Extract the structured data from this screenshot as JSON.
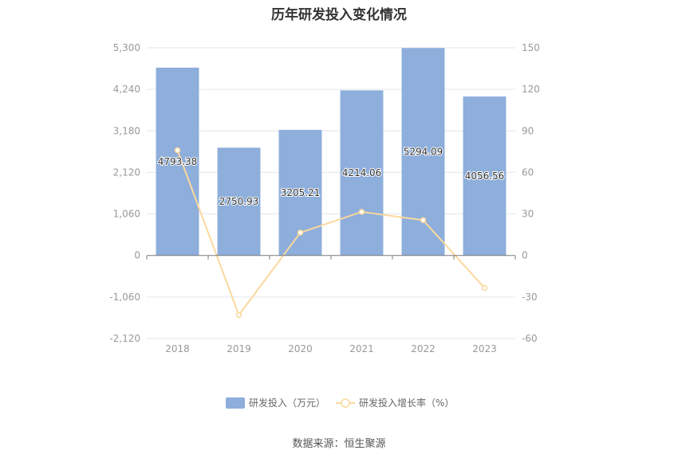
{
  "chart_data": {
    "type": "bar",
    "title": "历年研发投入变化情况",
    "categories": [
      "2018",
      "2019",
      "2020",
      "2021",
      "2022",
      "2023"
    ],
    "series": [
      {
        "name": "研发投入（万元）",
        "type": "bar",
        "axis": "left",
        "color": "#8eaedb",
        "values": [
          4793.38,
          2750.93,
          3205.21,
          4214.06,
          5294.09,
          4056.56
        ],
        "labels": [
          "4793.38",
          "2750.93",
          "3205.21",
          "4214.06",
          "5294.09",
          "4056.56"
        ]
      },
      {
        "name": "研发投入增长率（%）",
        "type": "line",
        "axis": "right",
        "color": "#fbd89e",
        "values": [
          76,
          -43,
          16.5,
          31.5,
          25.5,
          -23.5
        ]
      }
    ],
    "y_left": {
      "min": -2120,
      "max": 5300,
      "ticks": [
        5300,
        4240,
        3180,
        2120,
        1060,
        0,
        -1060,
        -2120
      ],
      "tick_labels": [
        "5,300",
        "4,240",
        "3,180",
        "2,120",
        "1,060",
        "0",
        "-1,060",
        "-2,120"
      ]
    },
    "y_right": {
      "min": -60,
      "max": 150,
      "ticks": [
        150,
        120,
        90,
        60,
        30,
        0,
        -30,
        -60
      ],
      "tick_labels": [
        "150",
        "120",
        "90",
        "60",
        "30",
        "0",
        "-30",
        "-60"
      ]
    },
    "grid": true,
    "legend_position": "bottom"
  },
  "source": "数据来源：恒生聚源"
}
